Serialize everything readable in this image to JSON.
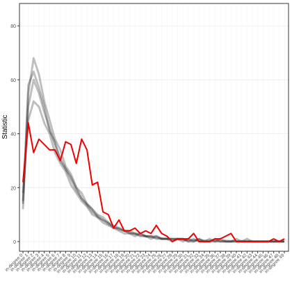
{
  "chart_data": {
    "type": "line",
    "y_label": "Statistic",
    "categories": [
      "in-degree 0",
      "in-degree 1",
      "in-degree 2",
      "in-degree 3",
      "in-degree 4",
      "in-degree 5",
      "in-degree 6",
      "in-degree 7",
      "in-degree 8",
      "in-degree 9",
      "in-degree 10",
      "in-degree 11",
      "in-degree 12",
      "in-degree 13",
      "in-degree 14",
      "in-degree 15",
      "in-degree 16",
      "in-degree 17",
      "in-degree 18",
      "in-degree 19",
      "in-degree 20",
      "in-degree 21",
      "in-degree 22",
      "in-degree 23",
      "in-degree 24",
      "in-degree 25",
      "in-degree 26",
      "in-degree 27",
      "in-degree 28",
      "in-degree 29",
      "in-degree 30",
      "in-degree 31",
      "in-degree 32",
      "in-degree 33",
      "in-degree 34",
      "in-degree 35",
      "in-degree 36",
      "in-degree 37",
      "in-degree 38",
      "in-degree 39",
      "in-degree 40",
      "in-degree 41",
      "in-degree 42",
      "in-degree 43",
      "in-degree 44",
      "in-degree 45",
      "in-degree 46",
      "in-degree 47",
      "in-degree 48",
      "in-degree 49"
    ],
    "series": [
      {
        "color": "#000000",
        "values": [
          15,
          50,
          60,
          55,
          48,
          42,
          36,
          31,
          27,
          23,
          19,
          16,
          13.5,
          11,
          9.5,
          8,
          6.5,
          5.5,
          4.5,
          4,
          3.3,
          2.8,
          2.3,
          2,
          1.7,
          1.4,
          1.2,
          1,
          0.9,
          0.8,
          0.7,
          0.6,
          0.5,
          0.5,
          0.4,
          0.4,
          0.3,
          0.3,
          0.3,
          0.2,
          0.2,
          0.2,
          0.2,
          0.1,
          0.1,
          0.1,
          0.1,
          0.1,
          0.1,
          0.1
        ]
      },
      {
        "color": "#000000",
        "values": [
          12,
          55,
          68,
          62,
          52,
          45,
          38,
          34,
          28,
          25,
          20,
          18,
          14,
          12,
          10,
          9,
          7,
          6,
          5,
          4,
          4,
          3,
          3,
          2,
          2,
          1,
          1,
          1,
          1,
          1,
          1,
          0,
          1,
          0,
          0,
          1,
          0,
          0,
          0,
          0,
          1,
          0,
          0,
          0,
          0,
          0,
          0,
          0,
          0,
          0
        ]
      },
      {
        "color": "#000000",
        "values": [
          18,
          45,
          52,
          50,
          44,
          40,
          33,
          29,
          26,
          21,
          18,
          15,
          13,
          10,
          9,
          7,
          6,
          5,
          4,
          3,
          3,
          3,
          2,
          2,
          2,
          2,
          1,
          1,
          1,
          1,
          0,
          1,
          0,
          1,
          0,
          0,
          0,
          1,
          0,
          0,
          0,
          0,
          0,
          0,
          0,
          0,
          0,
          0,
          0,
          0
        ]
      },
      {
        "color": "#000000",
        "values": [
          14,
          58,
          63,
          57,
          50,
          41,
          37,
          30,
          27,
          24,
          20,
          16,
          14,
          12,
          9,
          8,
          7,
          5,
          5,
          4,
          3,
          2,
          3,
          2,
          1,
          2,
          1,
          1,
          0,
          1,
          1,
          0,
          0,
          1,
          0,
          0,
          1,
          0,
          0,
          0,
          0,
          0,
          1,
          0,
          0,
          0,
          0,
          0,
          0,
          0
        ]
      },
      {
        "color": "#ee0000",
        "values": [
          22,
          44,
          33,
          38,
          36,
          34,
          34,
          30,
          37,
          36,
          29,
          38,
          34,
          21,
          22,
          11,
          10,
          5,
          8,
          4,
          4,
          5,
          3,
          4,
          3,
          6,
          3,
          2,
          0,
          1,
          1,
          1,
          3,
          0,
          0,
          0,
          1,
          1,
          2,
          3,
          0,
          0,
          0,
          0,
          0,
          0,
          0,
          1,
          0,
          1
        ]
      }
    ],
    "ylim": [
      -3.6,
      88.3
    ],
    "yticks": [
      0,
      20,
      40,
      60,
      80
    ],
    "grid": true
  }
}
